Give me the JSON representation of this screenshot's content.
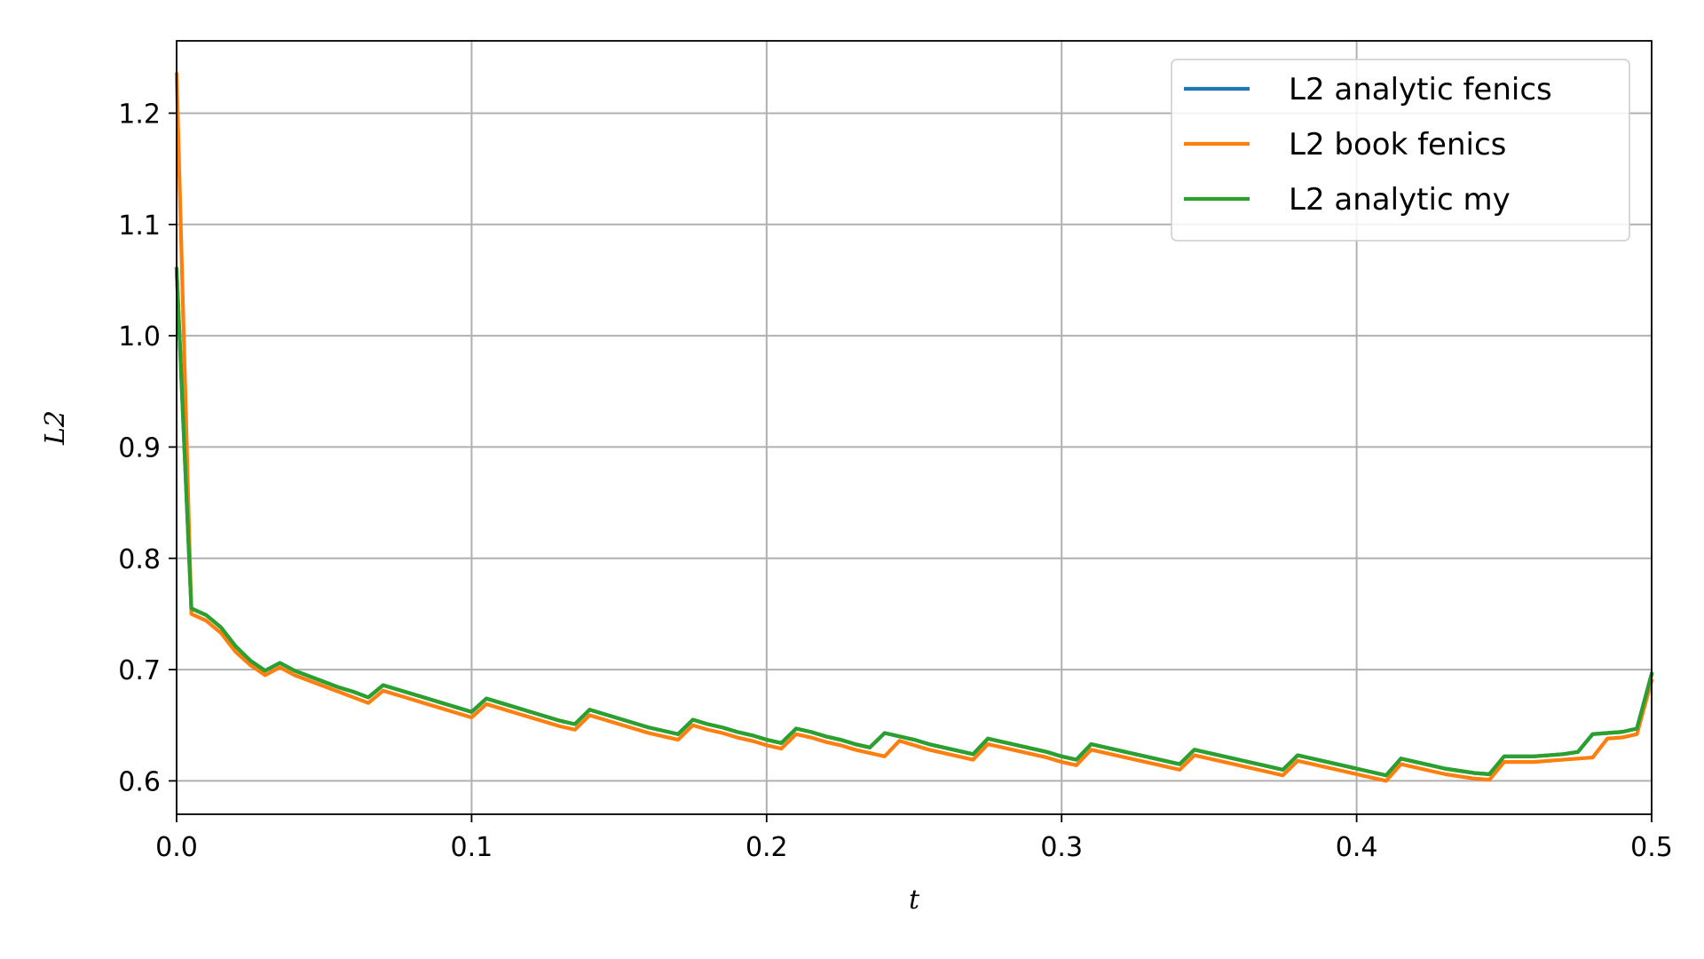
{
  "chart_data": {
    "type": "line",
    "xlabel": "t",
    "ylabel": "L2",
    "xlim": [
      0.0,
      0.5
    ],
    "ylim": [
      0.57,
      1.265
    ],
    "xticks": [
      0.0,
      0.1,
      0.2,
      0.3,
      0.4,
      0.5
    ],
    "xtick_labels": [
      "0.0",
      "0.1",
      "0.2",
      "0.3",
      "0.4",
      "0.5"
    ],
    "yticks": [
      0.6,
      0.7,
      0.8,
      0.9,
      1.0,
      1.1,
      1.2
    ],
    "ytick_labels": [
      "0.6",
      "0.7",
      "0.8",
      "0.9",
      "1.0",
      "1.1",
      "1.2"
    ],
    "grid": true,
    "legend_position": "top-right",
    "series": [
      {
        "name": "L2 analytic fenics",
        "color": "#1f77b4",
        "x": [
          0.0,
          0.005,
          0.01,
          0.015,
          0.02,
          0.025,
          0.03,
          0.035,
          0.04,
          0.045,
          0.05,
          0.055,
          0.06,
          0.065,
          0.07,
          0.075,
          0.08,
          0.085,
          0.09,
          0.095,
          0.1,
          0.105,
          0.11,
          0.115,
          0.12,
          0.125,
          0.13,
          0.135,
          0.14,
          0.145,
          0.15,
          0.155,
          0.16,
          0.165,
          0.17,
          0.175,
          0.18,
          0.185,
          0.19,
          0.195,
          0.2,
          0.205,
          0.21,
          0.215,
          0.22,
          0.225,
          0.23,
          0.235,
          0.24,
          0.245,
          0.25,
          0.255,
          0.26,
          0.265,
          0.27,
          0.275,
          0.28,
          0.285,
          0.29,
          0.295,
          0.3,
          0.305,
          0.31,
          0.315,
          0.32,
          0.325,
          0.33,
          0.335,
          0.34,
          0.345,
          0.35,
          0.355,
          0.36,
          0.365,
          0.37,
          0.375,
          0.38,
          0.385,
          0.39,
          0.395,
          0.4,
          0.405,
          0.41,
          0.415,
          0.42,
          0.425,
          0.43,
          0.435,
          0.44,
          0.445,
          0.45,
          0.455,
          0.46,
          0.465,
          0.47,
          0.475,
          0.48,
          0.485,
          0.49,
          0.495,
          0.5
        ],
        "y": [
          1.06,
          0.755,
          0.749,
          0.738,
          0.721,
          0.708,
          0.699,
          0.706,
          0.699,
          0.694,
          0.689,
          0.684,
          0.68,
          0.675,
          0.686,
          0.682,
          0.678,
          0.674,
          0.67,
          0.666,
          0.662,
          0.674,
          0.67,
          0.666,
          0.662,
          0.658,
          0.654,
          0.651,
          0.664,
          0.66,
          0.656,
          0.652,
          0.648,
          0.645,
          0.642,
          0.655,
          0.651,
          0.648,
          0.644,
          0.641,
          0.637,
          0.634,
          0.647,
          0.644,
          0.64,
          0.637,
          0.633,
          0.63,
          0.643,
          0.64,
          0.637,
          0.633,
          0.63,
          0.627,
          0.624,
          0.638,
          0.635,
          0.632,
          0.629,
          0.626,
          0.622,
          0.619,
          0.633,
          0.63,
          0.627,
          0.624,
          0.621,
          0.618,
          0.615,
          0.628,
          0.625,
          0.622,
          0.619,
          0.616,
          0.613,
          0.61,
          0.623,
          0.62,
          0.617,
          0.614,
          0.611,
          0.608,
          0.605,
          0.62,
          0.617,
          0.614,
          0.611,
          0.609,
          0.607,
          0.606,
          0.622,
          0.622,
          0.622,
          0.623,
          0.624,
          0.626,
          0.642,
          0.643,
          0.644,
          0.647,
          0.696
        ]
      },
      {
        "name": "L2 book fenics",
        "color": "#ff7f0e",
        "x": [
          0.0,
          0.005,
          0.01,
          0.015,
          0.02,
          0.025,
          0.03,
          0.035,
          0.04,
          0.045,
          0.05,
          0.055,
          0.06,
          0.065,
          0.07,
          0.075,
          0.08,
          0.085,
          0.09,
          0.095,
          0.1,
          0.105,
          0.11,
          0.115,
          0.12,
          0.125,
          0.13,
          0.135,
          0.14,
          0.145,
          0.15,
          0.155,
          0.16,
          0.165,
          0.17,
          0.175,
          0.18,
          0.185,
          0.19,
          0.195,
          0.2,
          0.205,
          0.21,
          0.215,
          0.22,
          0.225,
          0.23,
          0.235,
          0.24,
          0.245,
          0.25,
          0.255,
          0.26,
          0.265,
          0.27,
          0.275,
          0.28,
          0.285,
          0.29,
          0.295,
          0.3,
          0.305,
          0.31,
          0.315,
          0.32,
          0.325,
          0.33,
          0.335,
          0.34,
          0.345,
          0.35,
          0.355,
          0.36,
          0.365,
          0.37,
          0.375,
          0.38,
          0.385,
          0.39,
          0.395,
          0.4,
          0.405,
          0.41,
          0.415,
          0.42,
          0.425,
          0.43,
          0.435,
          0.44,
          0.445,
          0.45,
          0.455,
          0.46,
          0.465,
          0.47,
          0.475,
          0.48,
          0.485,
          0.49,
          0.495,
          0.5
        ],
        "y": [
          1.235,
          0.75,
          0.744,
          0.733,
          0.716,
          0.704,
          0.695,
          0.702,
          0.695,
          0.69,
          0.685,
          0.68,
          0.675,
          0.67,
          0.681,
          0.677,
          0.673,
          0.669,
          0.665,
          0.661,
          0.657,
          0.669,
          0.665,
          0.661,
          0.657,
          0.653,
          0.649,
          0.646,
          0.659,
          0.655,
          0.651,
          0.647,
          0.643,
          0.64,
          0.637,
          0.65,
          0.646,
          0.643,
          0.639,
          0.636,
          0.632,
          0.629,
          0.642,
          0.639,
          0.635,
          0.632,
          0.628,
          0.625,
          0.622,
          0.636,
          0.632,
          0.628,
          0.625,
          0.622,
          0.619,
          0.633,
          0.63,
          0.627,
          0.624,
          0.621,
          0.617,
          0.614,
          0.628,
          0.625,
          0.622,
          0.619,
          0.616,
          0.613,
          0.61,
          0.623,
          0.62,
          0.617,
          0.614,
          0.611,
          0.608,
          0.605,
          0.618,
          0.615,
          0.612,
          0.609,
          0.606,
          0.603,
          0.6,
          0.615,
          0.612,
          0.609,
          0.606,
          0.604,
          0.602,
          0.601,
          0.617,
          0.617,
          0.617,
          0.618,
          0.619,
          0.62,
          0.621,
          0.638,
          0.639,
          0.642,
          0.69
        ]
      },
      {
        "name": "L2 analytic my",
        "color": "#2ca02c",
        "x": [
          0.0,
          0.005,
          0.01,
          0.015,
          0.02,
          0.025,
          0.03,
          0.035,
          0.04,
          0.045,
          0.05,
          0.055,
          0.06,
          0.065,
          0.07,
          0.075,
          0.08,
          0.085,
          0.09,
          0.095,
          0.1,
          0.105,
          0.11,
          0.115,
          0.12,
          0.125,
          0.13,
          0.135,
          0.14,
          0.145,
          0.15,
          0.155,
          0.16,
          0.165,
          0.17,
          0.175,
          0.18,
          0.185,
          0.19,
          0.195,
          0.2,
          0.205,
          0.21,
          0.215,
          0.22,
          0.225,
          0.23,
          0.235,
          0.24,
          0.245,
          0.25,
          0.255,
          0.26,
          0.265,
          0.27,
          0.275,
          0.28,
          0.285,
          0.29,
          0.295,
          0.3,
          0.305,
          0.31,
          0.315,
          0.32,
          0.325,
          0.33,
          0.335,
          0.34,
          0.345,
          0.35,
          0.355,
          0.36,
          0.365,
          0.37,
          0.375,
          0.38,
          0.385,
          0.39,
          0.395,
          0.4,
          0.405,
          0.41,
          0.415,
          0.42,
          0.425,
          0.43,
          0.435,
          0.44,
          0.445,
          0.45,
          0.455,
          0.46,
          0.465,
          0.47,
          0.475,
          0.48,
          0.485,
          0.49,
          0.495,
          0.5
        ],
        "y": [
          1.06,
          0.755,
          0.749,
          0.738,
          0.721,
          0.708,
          0.699,
          0.706,
          0.699,
          0.694,
          0.689,
          0.684,
          0.68,
          0.675,
          0.686,
          0.682,
          0.678,
          0.674,
          0.67,
          0.666,
          0.662,
          0.674,
          0.67,
          0.666,
          0.662,
          0.658,
          0.654,
          0.651,
          0.664,
          0.66,
          0.656,
          0.652,
          0.648,
          0.645,
          0.642,
          0.655,
          0.651,
          0.648,
          0.644,
          0.641,
          0.637,
          0.634,
          0.647,
          0.644,
          0.64,
          0.637,
          0.633,
          0.63,
          0.643,
          0.64,
          0.637,
          0.633,
          0.63,
          0.627,
          0.624,
          0.638,
          0.635,
          0.632,
          0.629,
          0.626,
          0.622,
          0.619,
          0.633,
          0.63,
          0.627,
          0.624,
          0.621,
          0.618,
          0.615,
          0.628,
          0.625,
          0.622,
          0.619,
          0.616,
          0.613,
          0.61,
          0.623,
          0.62,
          0.617,
          0.614,
          0.611,
          0.608,
          0.605,
          0.62,
          0.617,
          0.614,
          0.611,
          0.609,
          0.607,
          0.606,
          0.622,
          0.622,
          0.622,
          0.623,
          0.624,
          0.626,
          0.642,
          0.643,
          0.644,
          0.647,
          0.696
        ]
      }
    ]
  }
}
